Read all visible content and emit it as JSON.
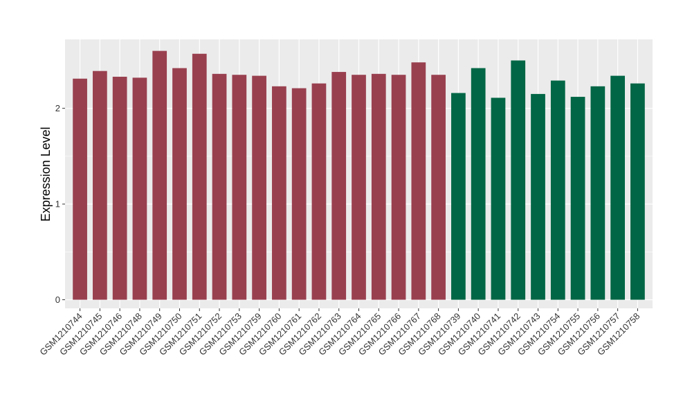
{
  "chart_data": {
    "type": "bar",
    "title": "",
    "xlabel": "",
    "ylabel": "Expression Level",
    "ylim": [
      -0.09,
      2.72
    ],
    "yticks": [
      0,
      1,
      2
    ],
    "grid": true,
    "legend": "none",
    "panel_background": "#ebebeb",
    "grid_color": "#ffffff",
    "categories": [
      "GSM1210744",
      "GSM1210745",
      "GSM1210746",
      "GSM1210748",
      "GSM1210749",
      "GSM1210750",
      "GSM1210751",
      "GSM1210752",
      "GSM1210753",
      "GSM1210759",
      "GSM1210760",
      "GSM1210761",
      "GSM1210762",
      "GSM1210763",
      "GSM1210764",
      "GSM1210765",
      "GSM1210766",
      "GSM1210767",
      "GSM1210768",
      "GSM1210739",
      "GSM1210740",
      "GSM1210741",
      "GSM1210742",
      "GSM1210743",
      "GSM1210754",
      "GSM1210755",
      "GSM1210756",
      "GSM1210757",
      "GSM1210758"
    ],
    "values": [
      2.31,
      2.39,
      2.33,
      2.32,
      2.6,
      2.42,
      2.57,
      2.36,
      2.35,
      2.34,
      2.23,
      2.21,
      2.26,
      2.38,
      2.35,
      2.36,
      2.35,
      2.48,
      2.35,
      2.16,
      2.42,
      2.11,
      2.5,
      2.15,
      2.29,
      2.12,
      2.23,
      2.34,
      2.26
    ],
    "group_colors": [
      "#99404f",
      "#99404f",
      "#99404f",
      "#99404f",
      "#99404f",
      "#99404f",
      "#99404f",
      "#99404f",
      "#99404f",
      "#99404f",
      "#99404f",
      "#99404f",
      "#99404f",
      "#99404f",
      "#99404f",
      "#99404f",
      "#99404f",
      "#99404f",
      "#99404f",
      "#006645",
      "#006645",
      "#006645",
      "#006645",
      "#006645",
      "#006645",
      "#006645",
      "#006645",
      "#006645",
      "#006645"
    ]
  }
}
